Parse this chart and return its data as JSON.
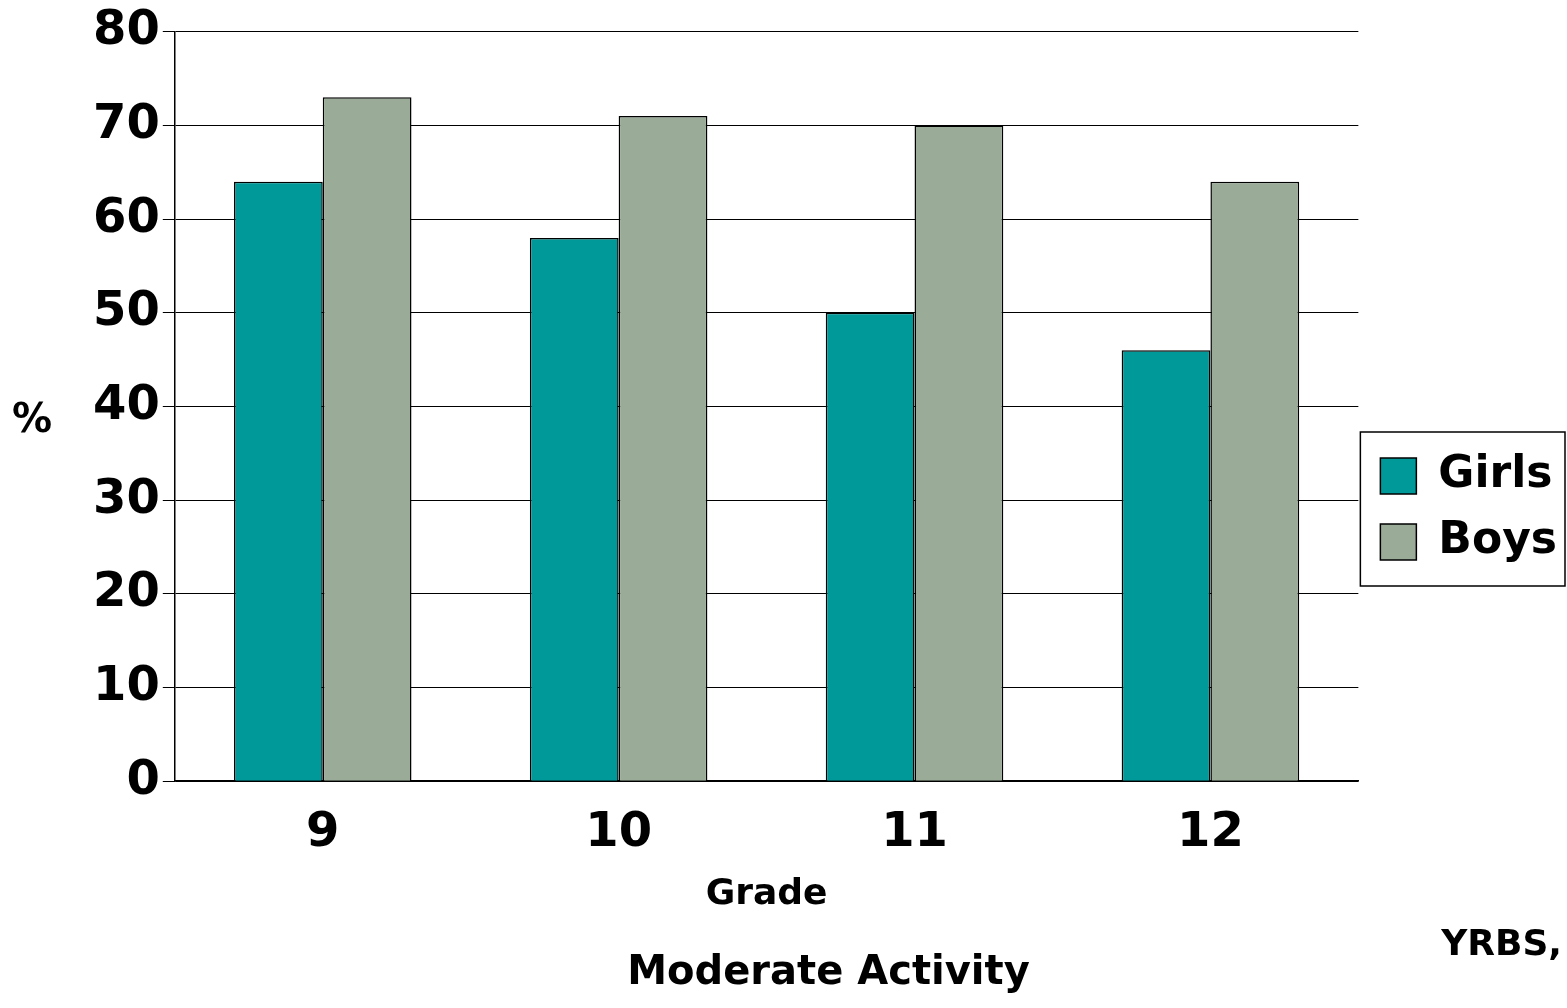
{
  "chart_data": {
    "type": "bar",
    "title": "Moderate Activity",
    "xlabel": "Grade",
    "ylabel": "%",
    "categories": [
      "9",
      "10",
      "11",
      "12"
    ],
    "series": [
      {
        "name": "Girls",
        "color": "#009999",
        "values": [
          64,
          58,
          50,
          46
        ]
      },
      {
        "name": "Boys",
        "color": "#9aab98",
        "values": [
          73,
          71,
          70,
          64
        ]
      }
    ],
    "ylim": [
      0,
      80
    ],
    "yticks": [
      0,
      10,
      20,
      30,
      40,
      50,
      60,
      70,
      80
    ],
    "grid": "y",
    "legend": "right",
    "annotations": [
      "YRBS,"
    ]
  }
}
